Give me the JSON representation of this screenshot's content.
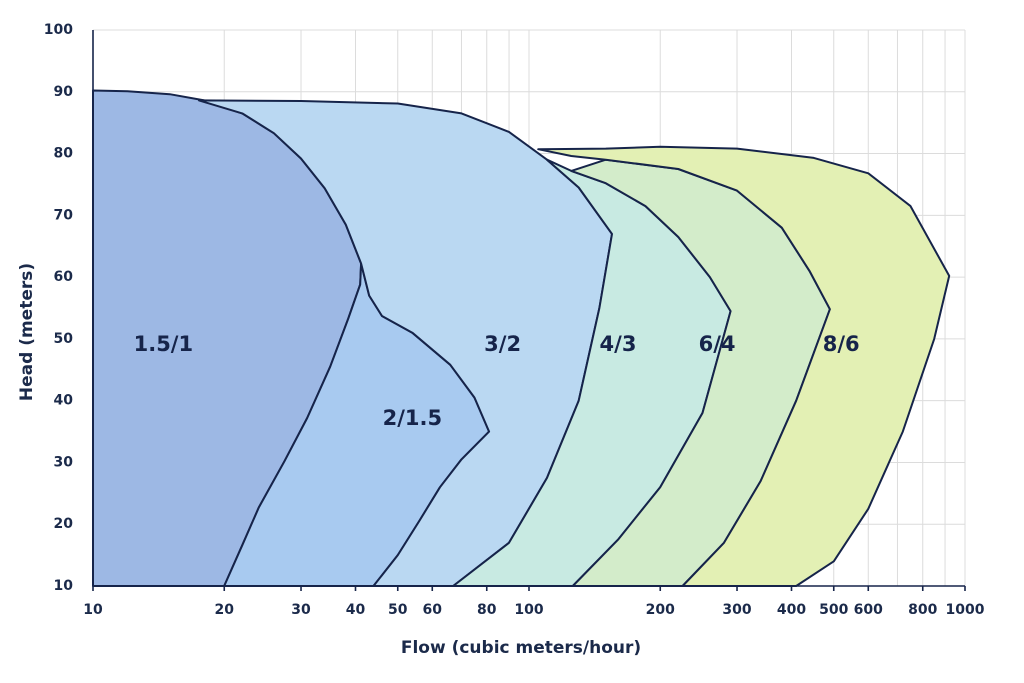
{
  "chart_data": {
    "type": "area",
    "title": "",
    "xlabel": "Flow (cubic meters/hour)",
    "ylabel": "Head (meters)",
    "x_scale": "log",
    "xlim": [
      10,
      1000
    ],
    "ylim": [
      10,
      100
    ],
    "grid": true,
    "x_ticks": [
      10,
      20,
      30,
      40,
      50,
      60,
      80,
      100,
      200,
      300,
      400,
      500,
      600,
      800,
      1000
    ],
    "x_tick_labels": [
      "10",
      "20",
      "30",
      "40",
      "50",
      "60",
      "80",
      "100",
      "200",
      "300",
      "400",
      "500",
      "600",
      "800",
      "1000"
    ],
    "y_ticks": [
      10,
      20,
      30,
      40,
      50,
      60,
      70,
      80,
      90,
      100
    ],
    "y_tick_labels": [
      "10",
      "20",
      "30",
      "40",
      "50",
      "60",
      "70",
      "80",
      "90",
      "100"
    ],
    "regions": [
      {
        "label": "1.5/1",
        "color": "#9db8e4",
        "label_at": [
          14.5,
          49
        ],
        "boundary": [
          [
            10,
            90.2
          ],
          [
            12,
            90.1
          ],
          [
            15,
            89.6
          ],
          [
            18,
            88.6
          ],
          [
            22,
            86.5
          ],
          [
            26,
            83.3
          ],
          [
            30,
            79.2
          ],
          [
            34,
            74.4
          ],
          [
            38,
            68.5
          ],
          [
            41.2,
            62.2
          ],
          [
            41,
            58.8
          ],
          [
            38.5,
            53.3
          ],
          [
            35,
            45.5
          ],
          [
            31,
            37.2
          ],
          [
            27.5,
            30.2
          ],
          [
            24,
            22.7
          ],
          [
            22,
            16.6
          ],
          [
            20,
            10
          ],
          [
            10,
            10
          ]
        ]
      },
      {
        "label": "2/1.5",
        "color": "#a8caf0",
        "label_at": [
          54,
          37
        ],
        "boundary": [
          [
            41.2,
            62.2
          ],
          [
            41,
            58.8
          ],
          [
            38.5,
            53.3
          ],
          [
            35,
            45.5
          ],
          [
            31,
            37.2
          ],
          [
            27.5,
            30.2
          ],
          [
            24,
            22.7
          ],
          [
            22,
            16.6
          ],
          [
            20,
            10
          ],
          [
            44,
            10
          ],
          [
            50,
            15
          ],
          [
            56,
            20.5
          ],
          [
            62.5,
            26
          ],
          [
            70,
            30.5
          ],
          [
            81,
            35
          ],
          [
            75,
            40.5
          ],
          [
            66,
            45.8
          ],
          [
            54,
            51
          ],
          [
            46,
            53.7
          ],
          [
            43,
            57
          ]
        ]
      },
      {
        "label": "3/2",
        "color": "#bad8f2",
        "label_at": [
          87,
          49
        ],
        "boundary": [
          [
            17.5,
            88.6
          ],
          [
            30,
            88.5
          ],
          [
            50,
            88.1
          ],
          [
            70,
            86.5
          ],
          [
            90,
            83.5
          ],
          [
            110,
            79
          ],
          [
            130,
            74.5
          ],
          [
            155,
            67
          ],
          [
            145,
            55
          ],
          [
            130,
            40
          ],
          [
            110,
            27.5
          ],
          [
            90,
            17
          ],
          [
            67,
            10
          ],
          [
            44,
            10
          ],
          [
            50,
            15
          ],
          [
            56,
            20.5
          ],
          [
            62.5,
            26
          ],
          [
            70,
            30.5
          ],
          [
            81,
            35
          ],
          [
            75,
            40.5
          ],
          [
            66,
            45.8
          ],
          [
            54,
            51
          ],
          [
            46,
            53.7
          ],
          [
            43,
            57
          ],
          [
            41.2,
            62.2
          ],
          [
            38,
            68.5
          ],
          [
            34,
            74.4
          ],
          [
            30,
            79.2
          ],
          [
            26,
            83.3
          ],
          [
            22,
            86.5
          ]
        ]
      },
      {
        "label": "4/3",
        "color": "#c8eae2",
        "label_at": [
          160,
          49
        ],
        "boundary": [
          [
            110,
            79
          ],
          [
            130,
            74.5
          ],
          [
            155,
            67
          ],
          [
            145,
            55
          ],
          [
            130,
            40
          ],
          [
            110,
            27.5
          ],
          [
            90,
            17
          ],
          [
            67,
            10
          ],
          [
            126,
            10
          ],
          [
            160,
            17.5
          ],
          [
            200,
            26
          ],
          [
            250,
            38
          ],
          [
            290,
            54.5
          ],
          [
            260,
            60
          ],
          [
            220,
            66.5
          ],
          [
            185,
            71.5
          ],
          [
            150,
            75.2
          ],
          [
            125,
            77.2
          ]
        ]
      },
      {
        "label": "6/4",
        "color": "#d3ecca",
        "label_at": [
          270,
          49
        ],
        "boundary": [
          [
            125,
            77.2
          ],
          [
            150,
            75.2
          ],
          [
            185,
            71.5
          ],
          [
            220,
            66.5
          ],
          [
            260,
            60
          ],
          [
            290,
            54.5
          ],
          [
            250,
            38
          ],
          [
            200,
            26
          ],
          [
            160,
            17.5
          ],
          [
            126,
            10
          ],
          [
            225,
            10
          ],
          [
            280,
            17
          ],
          [
            340,
            27
          ],
          [
            410,
            40
          ],
          [
            490,
            54.8
          ],
          [
            440,
            61
          ],
          [
            380,
            68
          ],
          [
            300,
            74
          ],
          [
            220,
            77.5
          ],
          [
            150,
            79
          ]
        ]
      },
      {
        "label": "8/6",
        "color": "#e3f0b4",
        "label_at": [
          520,
          49
        ],
        "boundary": [
          [
            105,
            80.7
          ],
          [
            150,
            80.8
          ],
          [
            200,
            81.1
          ],
          [
            300,
            80.8
          ],
          [
            450,
            79.3
          ],
          [
            600,
            76.8
          ],
          [
            750,
            71.5
          ],
          [
            920,
            60.2
          ],
          [
            850,
            50
          ],
          [
            720,
            35
          ],
          [
            600,
            22.5
          ],
          [
            500,
            14
          ],
          [
            410,
            10
          ],
          [
            225,
            10
          ],
          [
            280,
            17
          ],
          [
            340,
            27
          ],
          [
            410,
            40
          ],
          [
            490,
            54.8
          ],
          [
            440,
            61
          ],
          [
            380,
            68
          ],
          [
            300,
            74
          ],
          [
            220,
            77.5
          ],
          [
            150,
            79
          ],
          [
            125,
            79.6
          ]
        ]
      }
    ]
  }
}
